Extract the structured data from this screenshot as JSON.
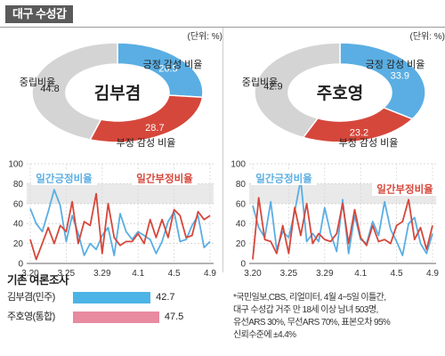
{
  "header": {
    "title": "대구 수성갑"
  },
  "chart_data": [
    {
      "type": "pie",
      "candidate": "김부겸",
      "unit_label": "(단위: %)",
      "slices": [
        {
          "name": "긍정 감성 비율",
          "value": 26.5,
          "color": "#5aaee3"
        },
        {
          "name": "부정 감성 비율",
          "value": 28.7,
          "color": "#d6473b"
        },
        {
          "name": "중립비율",
          "value": 44.8,
          "color": "#d4d4d4"
        }
      ]
    },
    {
      "type": "pie",
      "candidate": "주호영",
      "unit_label": "(단위: %)",
      "slices": [
        {
          "name": "긍정 감성 비율",
          "value": 33.9,
          "color": "#5aaee3"
        },
        {
          "name": "부정 감성 비율",
          "value": 23.2,
          "color": "#d6473b"
        },
        {
          "name": "중립비율",
          "value": 42.9,
          "color": "#d4d4d4"
        }
      ]
    },
    {
      "type": "line",
      "ylim": [
        0,
        100
      ],
      "yticks": [
        "100",
        "80",
        "60",
        "40",
        "20",
        "0"
      ],
      "xticks": [
        "3.20",
        "3.25",
        "3.29",
        "4.1",
        "4.5",
        "4.9"
      ],
      "series": [
        {
          "name": "일간긍정비율",
          "color": "#5aaee3",
          "values": [
            55,
            40,
            32,
            52,
            74,
            58,
            22,
            48,
            30,
            8,
            20,
            14,
            28,
            36,
            8,
            50,
            32,
            24,
            32,
            28,
            24,
            10,
            22,
            42,
            52,
            22,
            24,
            38,
            48,
            16,
            22
          ]
        },
        {
          "name": "일간부정비율",
          "color": "#d6473b",
          "values": [
            24,
            4,
            20,
            36,
            20,
            38,
            32,
            62,
            20,
            42,
            38,
            70,
            10,
            60,
            26,
            18,
            22,
            22,
            30,
            20,
            44,
            26,
            44,
            26,
            54,
            48,
            26,
            28,
            52,
            44,
            48
          ]
        }
      ]
    },
    {
      "type": "line",
      "ylim": [
        0,
        100
      ],
      "yticks": [
        "100",
        "80",
        "60",
        "40",
        "20",
        "0"
      ],
      "xticks": [
        "3.20",
        "3.25",
        "3.29",
        "4.1",
        "4.5",
        "4.9"
      ],
      "series": [
        {
          "name": "일간긍정비율",
          "color": "#5aaee3",
          "values": [
            58,
            36,
            26,
            62,
            14,
            32,
            26,
            52,
            84,
            22,
            30,
            22,
            56,
            30,
            12,
            64,
            10,
            48,
            24,
            20,
            42,
            28,
            62,
            34,
            22,
            8,
            40,
            46,
            20,
            10,
            30
          ]
        },
        {
          "name": "일간부정비율",
          "color": "#d6473b",
          "values": [
            4,
            66,
            24,
            22,
            10,
            38,
            10,
            56,
            28,
            60,
            20,
            30,
            24,
            22,
            30,
            60,
            20,
            54,
            26,
            18,
            38,
            22,
            24,
            20,
            38,
            42,
            64,
            24,
            36,
            14,
            38
          ]
        }
      ]
    },
    {
      "type": "bar",
      "title": "기존 여론조사",
      "categories": [
        "김부겸(민주)",
        "주호영(통합)"
      ],
      "values": [
        42.7,
        47.5
      ],
      "colors": [
        "#4cb4e6",
        "#e88aa0"
      ],
      "xlim": [
        0,
        50
      ]
    }
  ],
  "note": [
    "*국민일보,CBS, 리얼미터, 4월 4~5일 이틀간,",
    "대구 수성갑 거주 만 18세 이상 남녀 503명,",
    "유선ARS 30%, 무선ARS 70%, 표본오차 95%",
    "신뢰수준에 ±4.4%"
  ]
}
